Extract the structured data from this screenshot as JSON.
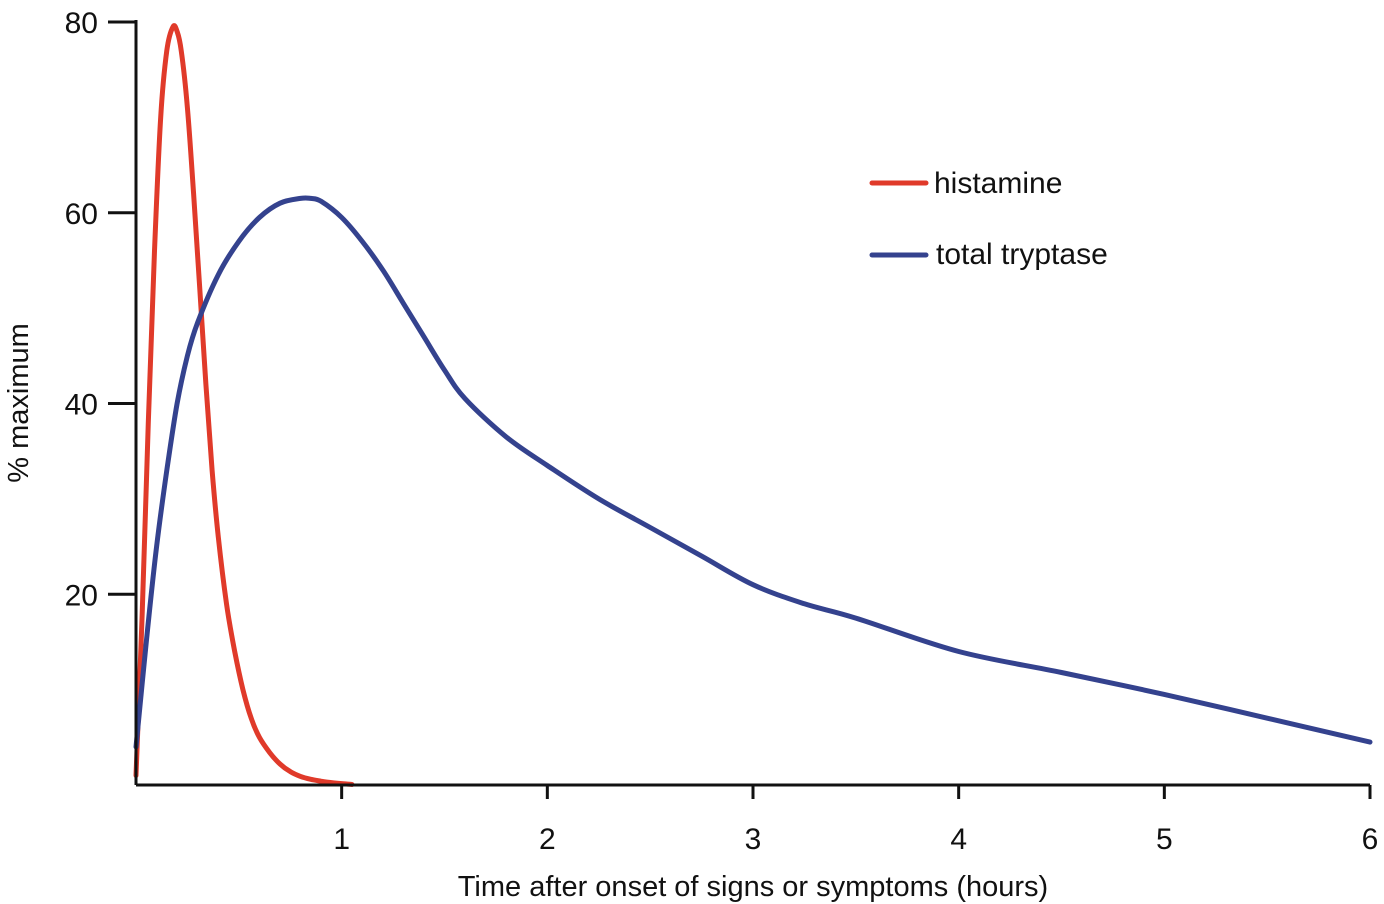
{
  "chart_data": {
    "type": "line",
    "xlabel": "Time after onset of signs or symptoms (hours)",
    "ylabel": "% maximum",
    "xlim": [
      0,
      6
    ],
    "ylim": [
      0,
      80
    ],
    "x_ticks": [
      1,
      2,
      3,
      4,
      5,
      6
    ],
    "y_ticks": [
      20,
      40,
      60,
      80
    ],
    "grid": false,
    "legend_position": "top-right",
    "series": [
      {
        "name": "histamine",
        "color": "#e03a2a",
        "x": [
          0.0,
          0.03,
          0.06,
          0.09,
          0.12,
          0.15,
          0.18,
          0.2,
          0.22,
          0.25,
          0.28,
          0.31,
          0.34,
          0.37,
          0.4,
          0.44,
          0.48,
          0.52,
          0.56,
          0.6,
          0.65,
          0.7,
          0.75,
          0.8,
          0.85,
          0.9,
          0.95,
          1.0,
          1.05
        ],
        "y": [
          1,
          18,
          38,
          56,
          70,
          77,
          79.5,
          79,
          77,
          71,
          62,
          52,
          42,
          33,
          26,
          19,
          14,
          10,
          7,
          5,
          3.4,
          2.2,
          1.4,
          0.9,
          0.6,
          0.4,
          0.25,
          0.15,
          0.05
        ]
      },
      {
        "name": "total tryptase",
        "color": "#34428e",
        "x": [
          0.0,
          0.05,
          0.1,
          0.15,
          0.2,
          0.25,
          0.3,
          0.4,
          0.5,
          0.6,
          0.7,
          0.8,
          0.85,
          0.9,
          1.0,
          1.1,
          1.2,
          1.3,
          1.4,
          1.5,
          1.6,
          1.8,
          2.0,
          2.25,
          2.5,
          2.75,
          3.0,
          3.25,
          3.5,
          4.0,
          4.5,
          5.0,
          5.5,
          6.0
        ],
        "y": [
          4,
          15,
          25,
          33,
          40,
          45,
          48.5,
          53.5,
          57,
          59.5,
          61,
          61.5,
          61.5,
          61.2,
          59.5,
          57,
          54,
          50.5,
          47,
          43.5,
          40.5,
          36.5,
          33.5,
          30,
          27,
          24,
          21,
          19,
          17.5,
          14,
          11.8,
          9.5,
          7,
          4.5
        ]
      }
    ]
  }
}
